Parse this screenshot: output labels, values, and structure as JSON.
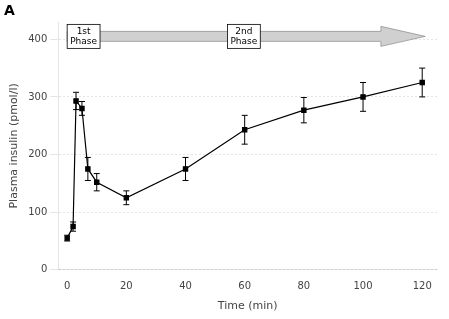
{
  "chart_data": {
    "type": "line",
    "x": [
      0,
      2,
      3,
      5,
      7,
      10,
      20,
      40,
      60,
      80,
      100,
      120
    ],
    "series": [
      {
        "values": [
          55,
          75,
          293,
          280,
          175,
          152,
          125,
          175,
          243,
          277,
          300,
          325
        ],
        "yerr": [
          5,
          8,
          15,
          12,
          20,
          15,
          12,
          20,
          25,
          22,
          25,
          25
        ],
        "color": "#000000",
        "marker": "square",
        "line_style": "solid"
      }
    ],
    "xlabel": "Time (min)",
    "ylabel": "Plasma insulin (pmol/l)",
    "xlim": [
      -3,
      125
    ],
    "ylim": [
      0,
      430
    ],
    "xticks": [
      0,
      20,
      40,
      60,
      80,
      100,
      120
    ],
    "yticks": [
      0,
      100,
      200,
      300,
      400
    ],
    "grid": "y",
    "annotations": [
      "A",
      "1st\nPhase",
      "2nd\nPhase"
    ]
  }
}
